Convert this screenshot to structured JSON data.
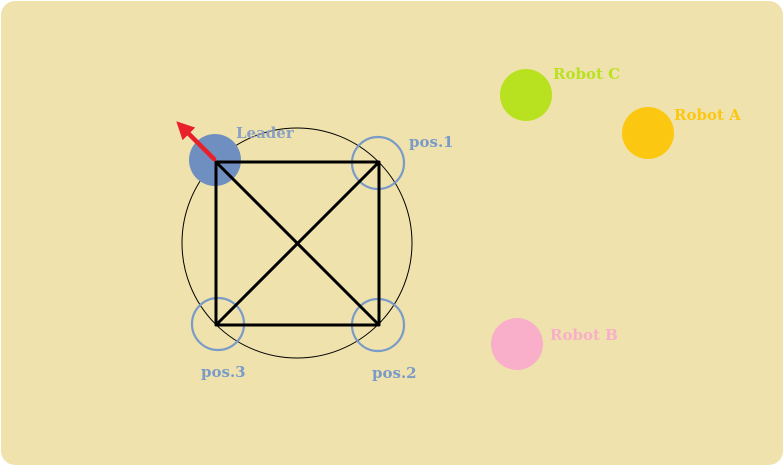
{
  "scene": {
    "background_color": "#efe2ac",
    "formation": {
      "line_color": "#000000",
      "ring_color": "#000000",
      "slot_color": "#7a9ac8"
    },
    "leader": {
      "label": "Leader",
      "color": "#6f8fc0",
      "label_color": "#8aa0c4",
      "heading_arrow_color": "#e8202a"
    },
    "positions": [
      {
        "label": "pos.1"
      },
      {
        "label": "pos.2"
      },
      {
        "label": "pos.3"
      }
    ],
    "robots": [
      {
        "label": "Robot A",
        "color": "#fcc711"
      },
      {
        "label": "Robot B",
        "color": "#f9aec9"
      },
      {
        "label": "Robot C",
        "color": "#b8e11f"
      }
    ]
  }
}
